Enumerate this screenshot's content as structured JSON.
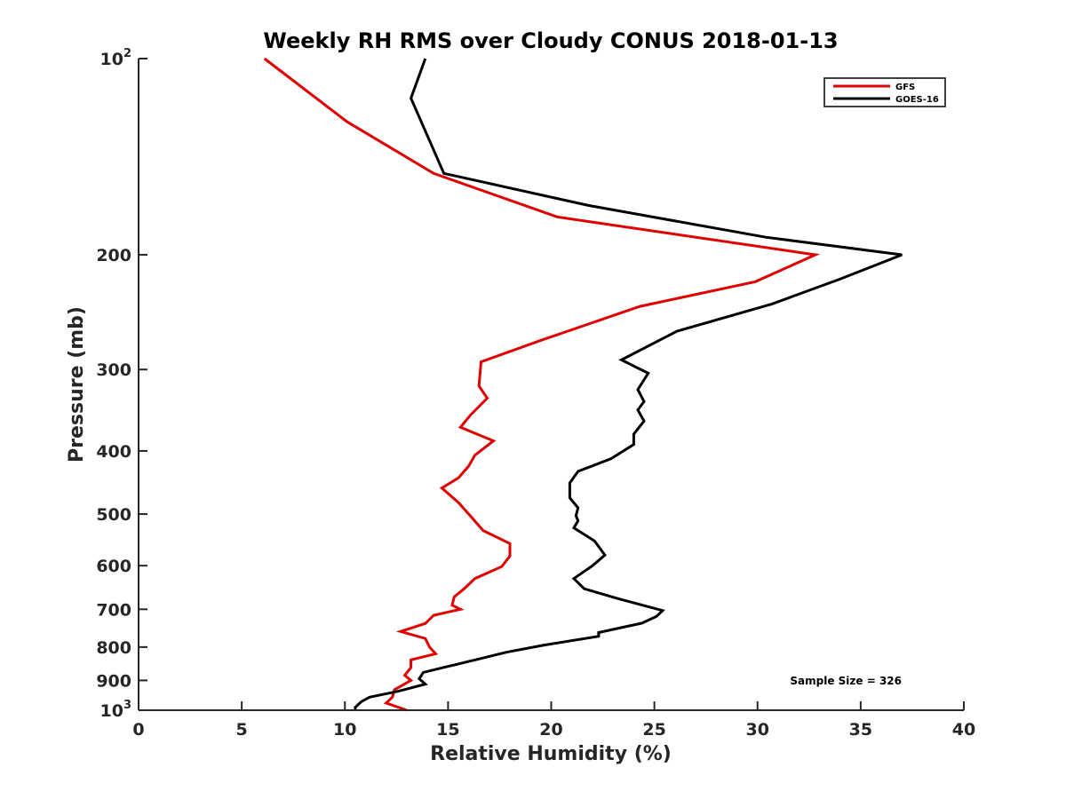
{
  "chart_data": {
    "type": "line",
    "orientation": "profile",
    "title": "Weekly RH RMS over Cloudy CONUS 2018-01-13",
    "xlabel": "Relative Humidity (%)",
    "ylabel": "Pressure (mb)",
    "xlim": [
      0,
      40
    ],
    "ylim": [
      100,
      1000
    ],
    "yscale": "log",
    "y_reversed": true,
    "x_ticks": [
      "0",
      "5",
      "10",
      "15",
      "20",
      "25",
      "30",
      "35",
      "40"
    ],
    "y_ticks": [
      {
        "value": 100,
        "base": "10",
        "exp": "2"
      },
      {
        "value": 200,
        "label": "200"
      },
      {
        "value": 300,
        "label": "300"
      },
      {
        "value": 400,
        "label": "400"
      },
      {
        "value": 500,
        "label": "500"
      },
      {
        "value": 600,
        "label": "600"
      },
      {
        "value": 700,
        "label": "700"
      },
      {
        "value": 800,
        "label": "800"
      },
      {
        "value": 900,
        "label": "900"
      },
      {
        "value": 1000,
        "base": "10",
        "exp": "3"
      }
    ],
    "grid": false,
    "legend": "top-right",
    "annotation": "Sample Size = 326",
    "series": [
      {
        "name": "GFS",
        "color": "#e00000",
        "points": [
          [
            6.1,
            100
          ],
          [
            10.1,
            125
          ],
          [
            14.3,
            150
          ],
          [
            20.3,
            175
          ],
          [
            32.8,
            200
          ],
          [
            29.9,
            220
          ],
          [
            24.3,
            240
          ],
          [
            19.6,
            270
          ],
          [
            16.6,
            292
          ],
          [
            16.5,
            318
          ],
          [
            16.9,
            332
          ],
          [
            16.1,
            352
          ],
          [
            15.6,
            368
          ],
          [
            17.2,
            386
          ],
          [
            16.3,
            406
          ],
          [
            16.0,
            422
          ],
          [
            15.5,
            440
          ],
          [
            14.7,
            456
          ],
          [
            15.5,
            480
          ],
          [
            16.0,
            500
          ],
          [
            16.7,
            530
          ],
          [
            18.0,
            555
          ],
          [
            18.0,
            580
          ],
          [
            17.6,
            602
          ],
          [
            16.3,
            628
          ],
          [
            15.8,
            650
          ],
          [
            15.3,
            670
          ],
          [
            15.2,
            690
          ],
          [
            15.6,
            700
          ],
          [
            14.3,
            715
          ],
          [
            13.9,
            736
          ],
          [
            12.7,
            757
          ],
          [
            13.9,
            776
          ],
          [
            14.1,
            800
          ],
          [
            14.4,
            819
          ],
          [
            13.2,
            837
          ],
          [
            13.2,
            860
          ],
          [
            12.9,
            884
          ],
          [
            13.2,
            900
          ],
          [
            12.4,
            930
          ],
          [
            12.3,
            955
          ],
          [
            12.0,
            975
          ],
          [
            13.0,
            1000
          ]
        ]
      },
      {
        "name": "GOES-16",
        "color": "#000000",
        "points": [
          [
            13.9,
            100
          ],
          [
            13.2,
            115
          ],
          [
            14.8,
            150
          ],
          [
            21.8,
            168
          ],
          [
            30.4,
            188
          ],
          [
            37.0,
            200
          ],
          [
            34.0,
            218
          ],
          [
            30.7,
            238
          ],
          [
            26.1,
            262
          ],
          [
            23.4,
            290
          ],
          [
            24.7,
            304
          ],
          [
            24.2,
            322
          ],
          [
            24.5,
            336
          ],
          [
            24.2,
            346
          ],
          [
            24.5,
            360
          ],
          [
            24.0,
            377
          ],
          [
            24.0,
            391
          ],
          [
            22.9,
            411
          ],
          [
            21.3,
            430
          ],
          [
            20.9,
            448
          ],
          [
            20.9,
            472
          ],
          [
            21.3,
            489
          ],
          [
            21.2,
            503
          ],
          [
            21.3,
            512
          ],
          [
            21.1,
            525
          ],
          [
            22.1,
            550
          ],
          [
            22.6,
            578
          ],
          [
            22.0,
            600
          ],
          [
            21.1,
            628
          ],
          [
            21.6,
            651
          ],
          [
            23.3,
            675
          ],
          [
            25.4,
            703
          ],
          [
            25.1,
            718
          ],
          [
            24.4,
            735
          ],
          [
            22.3,
            760
          ],
          [
            22.3,
            770
          ],
          [
            19.6,
            795
          ],
          [
            17.8,
            815
          ],
          [
            16.8,
            830
          ],
          [
            15.1,
            855
          ],
          [
            13.8,
            875
          ],
          [
            13.6,
            895
          ],
          [
            13.9,
            912
          ],
          [
            12.6,
            935
          ],
          [
            11.2,
            955
          ],
          [
            10.8,
            970
          ],
          [
            10.5,
            990
          ],
          [
            10.5,
            1000
          ]
        ]
      }
    ]
  }
}
